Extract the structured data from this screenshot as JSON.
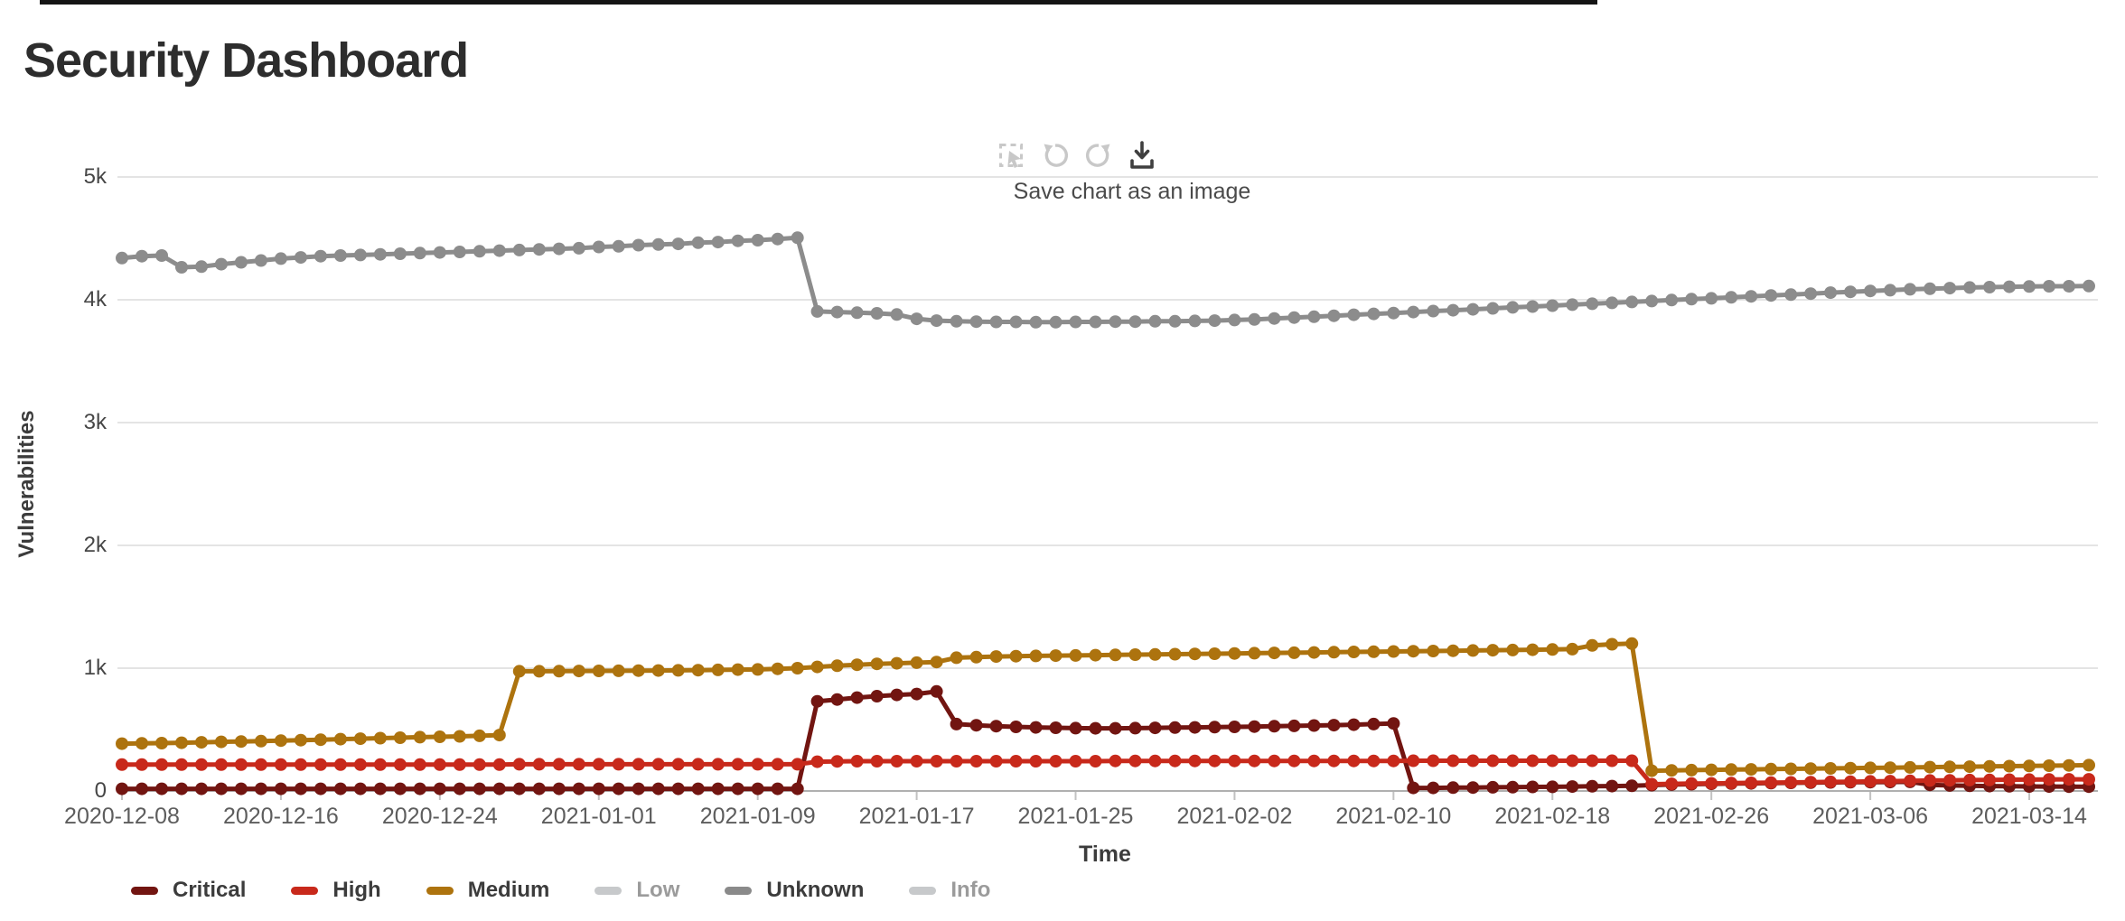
{
  "page": {
    "title": "Security Dashboard"
  },
  "toolbar": {
    "tooltip": "Save chart as an image",
    "buttons": [
      {
        "name": "marquee-select",
        "enabled": false
      },
      {
        "name": "undo",
        "enabled": false
      },
      {
        "name": "redo",
        "enabled": false
      },
      {
        "name": "download",
        "enabled": true
      }
    ]
  },
  "legend": {
    "items": [
      {
        "label": "Critical",
        "swatch": "#721511",
        "disabled": false
      },
      {
        "label": "High",
        "swatch": "#c8291b",
        "disabled": false
      },
      {
        "label": "Medium",
        "swatch": "#ad730e",
        "disabled": false
      },
      {
        "label": "Low",
        "swatch": "#c7c9cb",
        "disabled": true
      },
      {
        "label": "Unknown",
        "swatch": "#8a8a8a",
        "disabled": false
      },
      {
        "label": "Info",
        "swatch": "#c7c9cb",
        "disabled": true
      }
    ]
  },
  "chart_data": {
    "type": "line",
    "title": "Security Dashboard",
    "xlabel": "Time",
    "ylabel": "Vulnerabilities",
    "ylim": [
      0,
      5000
    ],
    "ytick_labels": [
      "0",
      "1k",
      "2k",
      "3k",
      "4k",
      "5k"
    ],
    "xtick_labels": [
      "2020-12-08",
      "2020-12-16",
      "2020-12-24",
      "2021-01-01",
      "2021-01-09",
      "2021-01-17",
      "2021-01-25",
      "2021-02-02",
      "2021-02-10",
      "2021-02-18",
      "2021-02-26",
      "2021-03-06",
      "2021-03-14"
    ],
    "x_start": "2020-12-08",
    "x_step_days": 1,
    "n_points": 100,
    "grid": "horizontal-only",
    "legend_position": "bottom-left",
    "marker": "circle",
    "series": [
      {
        "name": "Critical",
        "color": "#721511",
        "visible": true,
        "values": [
          18,
          18,
          18,
          18,
          18,
          18,
          18,
          18,
          18,
          18,
          18,
          18,
          18,
          18,
          18,
          18,
          18,
          18,
          18,
          18,
          18,
          18,
          18,
          18,
          18,
          18,
          18,
          18,
          18,
          18,
          18,
          18,
          18,
          18,
          18,
          730,
          745,
          760,
          772,
          782,
          790,
          810,
          545,
          535,
          528,
          522,
          518,
          515,
          512,
          510,
          510,
          512,
          514,
          516,
          518,
          520,
          522,
          524,
          527,
          530,
          533,
          536,
          540,
          545,
          550,
          25,
          25,
          27,
          28,
          30,
          31,
          33,
          34,
          36,
          38,
          40,
          42,
          48,
          52,
          55,
          58,
          60,
          62,
          64,
          66,
          68,
          70,
          71,
          72,
          73,
          74,
          50,
          45,
          42,
          40,
          38,
          37,
          36,
          35,
          35
        ]
      },
      {
        "name": "High",
        "color": "#c8291b",
        "visible": true,
        "values": [
          215,
          215,
          215,
          215,
          215,
          215,
          215,
          215,
          215,
          215,
          215,
          215,
          215,
          215,
          215,
          215,
          215,
          215,
          215,
          215,
          218,
          218,
          218,
          218,
          218,
          218,
          218,
          218,
          218,
          218,
          218,
          218,
          218,
          218,
          218,
          238,
          241,
          243,
          243,
          243,
          243,
          243,
          243,
          243,
          243,
          243,
          243,
          243,
          243,
          243,
          245,
          245,
          245,
          245,
          245,
          245,
          245,
          245,
          245,
          245,
          245,
          245,
          245,
          245,
          245,
          246,
          246,
          246,
          246,
          246,
          246,
          246,
          246,
          246,
          246,
          246,
          246,
          55,
          58,
          60,
          62,
          64,
          66,
          68,
          70,
          72,
          74,
          76,
          78,
          80,
          82,
          85,
          87,
          89,
          90,
          92,
          93,
          94,
          95,
          95
        ]
      },
      {
        "name": "Medium",
        "color": "#ad730e",
        "visible": true,
        "values": [
          385,
          388,
          390,
          393,
          396,
          400,
          403,
          406,
          410,
          414,
          418,
          422,
          426,
          430,
          434,
          438,
          441,
          445,
          449,
          455,
          975,
          975,
          976,
          977,
          978,
          979,
          980,
          981,
          982,
          984,
          986,
          988,
          990,
          995,
          1000,
          1010,
          1020,
          1028,
          1035,
          1040,
          1045,
          1050,
          1085,
          1090,
          1095,
          1098,
          1100,
          1102,
          1104,
          1106,
          1108,
          1110,
          1112,
          1114,
          1116,
          1118,
          1120,
          1122,
          1124,
          1126,
          1128,
          1130,
          1132,
          1134,
          1136,
          1138,
          1140,
          1142,
          1144,
          1146,
          1148,
          1150,
          1152,
          1155,
          1185,
          1195,
          1200,
          165,
          168,
          170,
          172,
          174,
          176,
          178,
          180,
          182,
          184,
          186,
          188,
          190,
          192,
          194,
          196,
          198,
          200,
          202,
          204,
          206,
          208,
          210
        ]
      },
      {
        "name": "Low",
        "color": "#c7c9cb",
        "visible": false,
        "values": []
      },
      {
        "name": "Unknown",
        "color": "#8c8c8c",
        "visible": true,
        "values": [
          4340,
          4355,
          4360,
          4265,
          4270,
          4290,
          4305,
          4320,
          4335,
          4345,
          4355,
          4360,
          4365,
          4370,
          4375,
          4380,
          4385,
          4390,
          4395,
          4400,
          4405,
          4410,
          4415,
          4420,
          4430,
          4435,
          4445,
          4450,
          4455,
          4465,
          4470,
          4480,
          4485,
          4495,
          4505,
          3905,
          3900,
          3895,
          3890,
          3880,
          3845,
          3830,
          3825,
          3822,
          3820,
          3820,
          3818,
          3818,
          3820,
          3820,
          3822,
          3822,
          3825,
          3825,
          3828,
          3830,
          3835,
          3840,
          3848,
          3855,
          3862,
          3870,
          3878,
          3885,
          3892,
          3900,
          3908,
          3915,
          3922,
          3930,
          3938,
          3945,
          3952,
          3960,
          3968,
          3975,
          3982,
          3990,
          3998,
          4005,
          4012,
          4020,
          4028,
          4035,
          4042,
          4050,
          4058,
          4065,
          4072,
          4078,
          4085,
          4090,
          4095,
          4100,
          4103,
          4106,
          4108,
          4110,
          4110,
          4112
        ]
      },
      {
        "name": "Info",
        "color": "#c7c9cb",
        "visible": false,
        "values": []
      }
    ]
  }
}
